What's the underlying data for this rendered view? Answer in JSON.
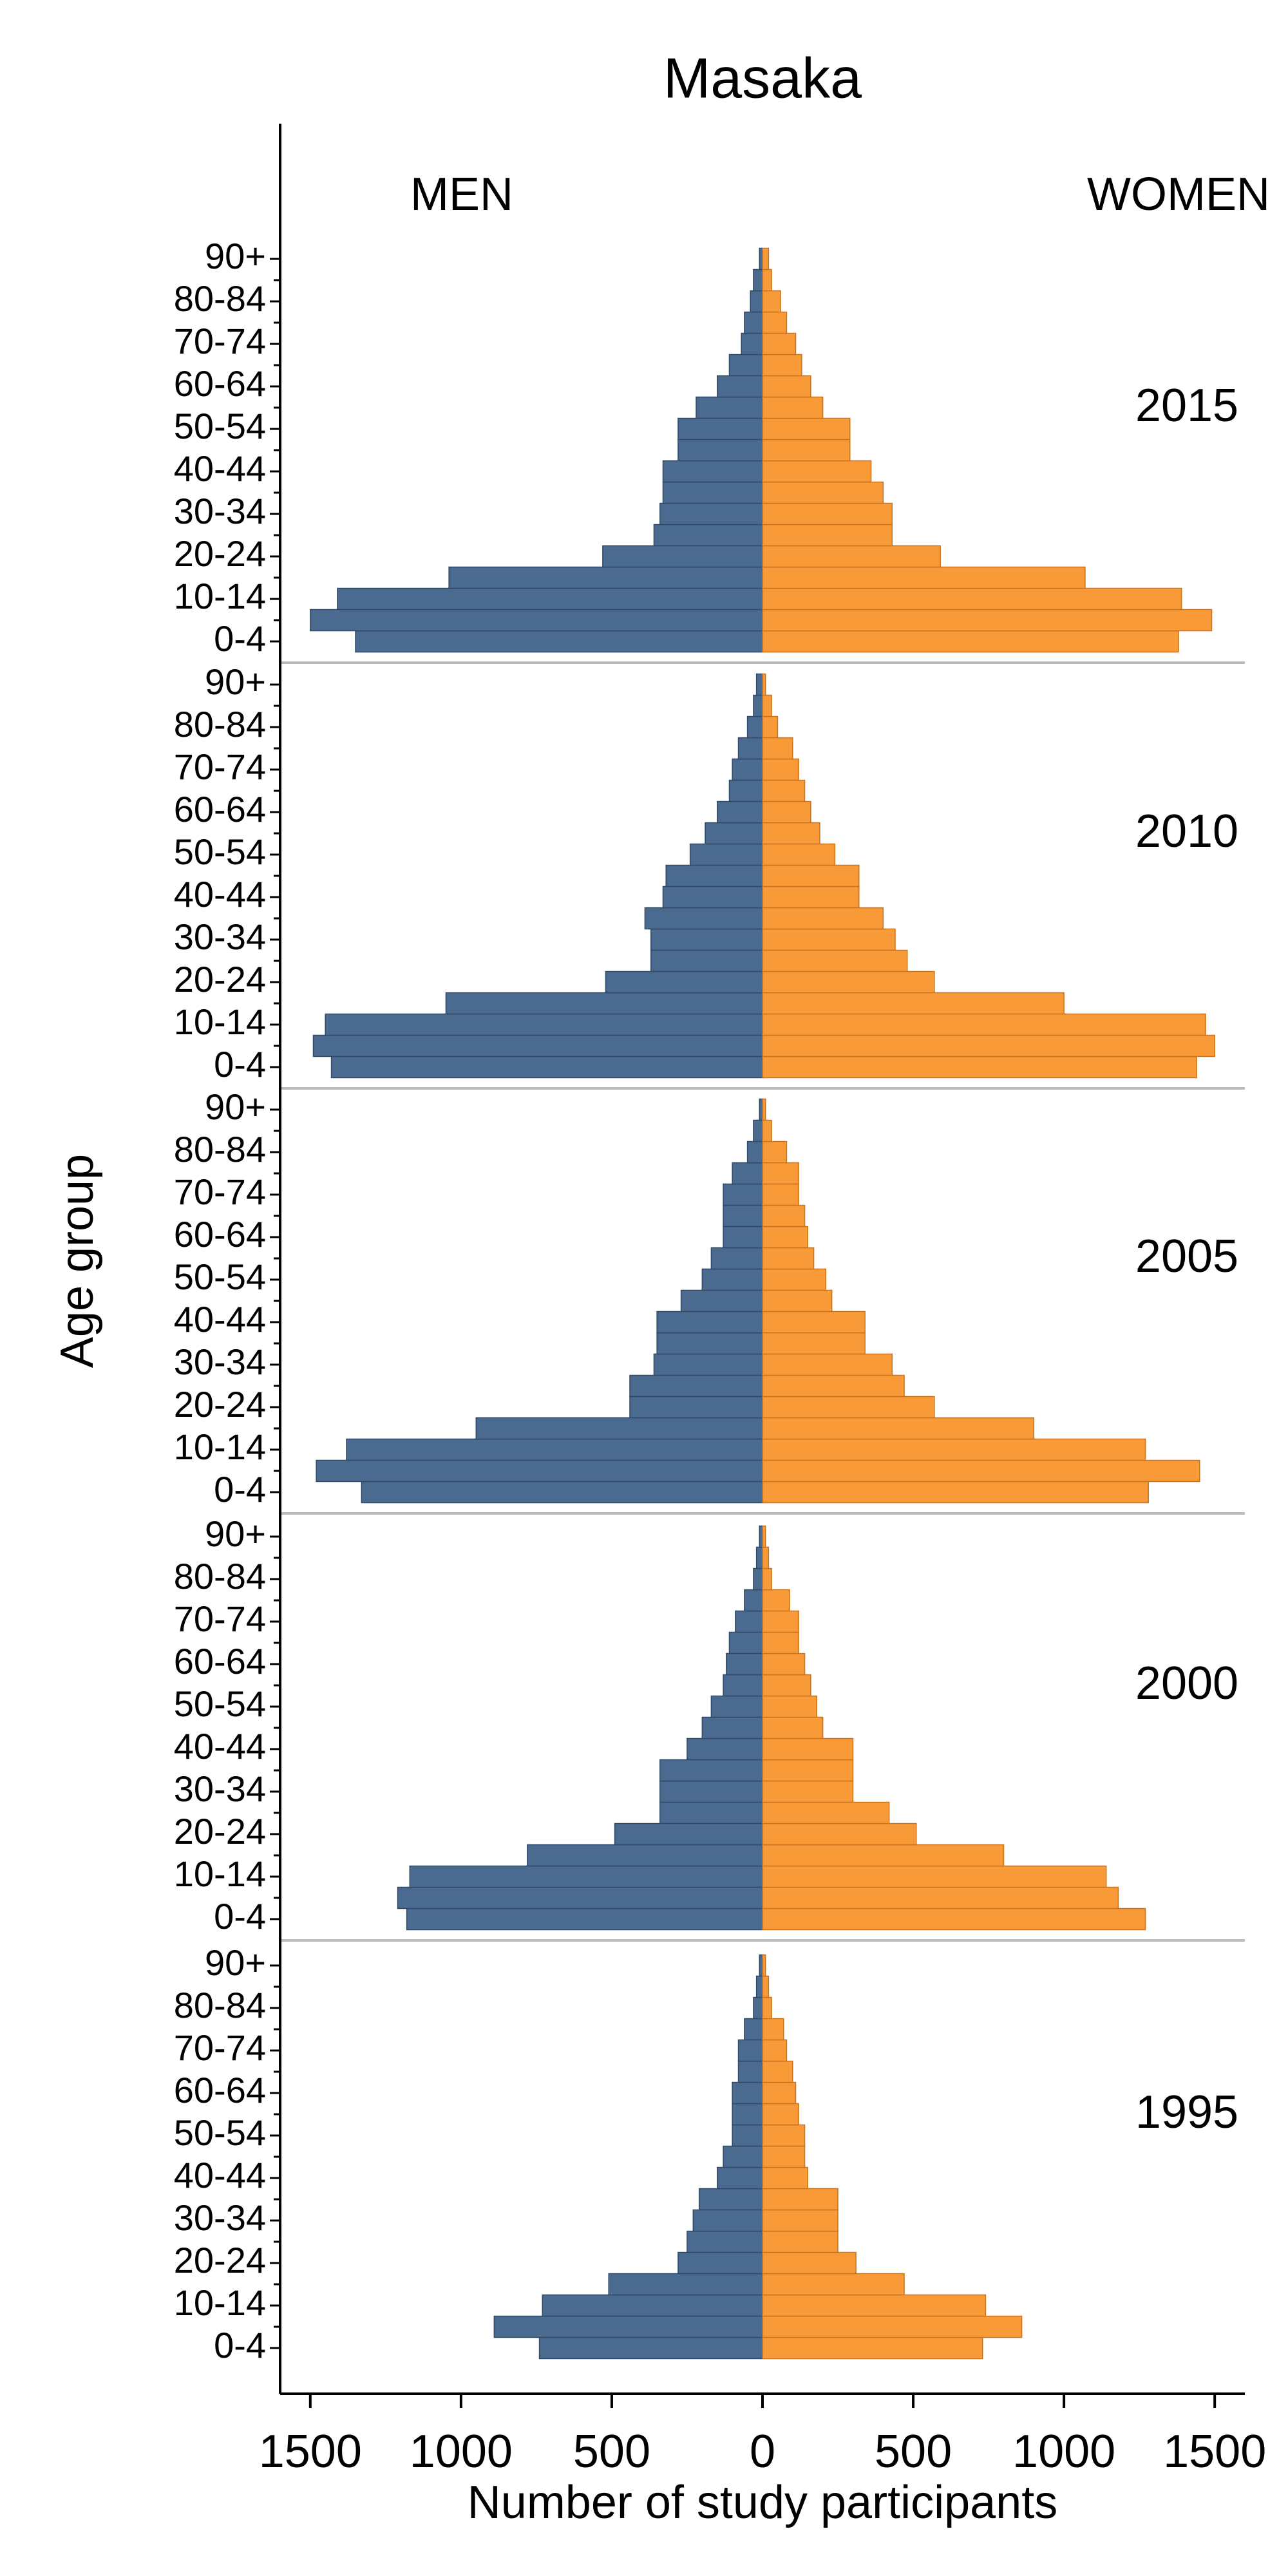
{
  "chart_data": {
    "type": "pyramid",
    "title": "Masaka",
    "y_label": "Age group",
    "x_label": "Number of study participants",
    "categories": [
      "0-4",
      null,
      "10-14",
      null,
      "20-24",
      null,
      "30-34",
      null,
      "40-44",
      null,
      "50-54",
      null,
      "60-64",
      null,
      "70-74",
      null,
      "80-84",
      null,
      "90+"
    ],
    "series": [
      {
        "name": "MEN",
        "color": "#4a6b8f"
      },
      {
        "name": "WOMEN",
        "color": "#f99a38"
      }
    ],
    "xlim": [
      -1600,
      1600
    ],
    "xticks": [
      {
        "value": -1500,
        "label": "1500"
      },
      {
        "value": -1000,
        "label": "1000"
      },
      {
        "value": -500,
        "label": "500"
      },
      0,
      500,
      1000,
      1500
    ],
    "panels": [
      {
        "label": "2015",
        "series": [
          {
            "values": [
              -1350,
              -1500,
              -1410,
              -1040,
              -530,
              -360,
              -340,
              -330,
              -330,
              -280,
              -280,
              -220,
              -150,
              -110,
              -70,
              -60,
              -40,
              -30,
              -10
            ]
          },
          {
            "values": [
              1380,
              1490,
              1390,
              1070,
              590,
              430,
              430,
              400,
              360,
              290,
              290,
              200,
              160,
              130,
              110,
              80,
              60,
              30,
              20
            ]
          }
        ]
      },
      {
        "label": "2010",
        "series": [
          {
            "values": [
              -1430,
              -1490,
              -1450,
              -1050,
              -520,
              -370,
              -370,
              -390,
              -330,
              -320,
              -240,
              -190,
              -150,
              -110,
              -100,
              -80,
              -50,
              -30,
              -20
            ]
          },
          {
            "values": [
              1440,
              1500,
              1470,
              1000,
              570,
              480,
              440,
              400,
              320,
              320,
              240,
              190,
              160,
              140,
              120,
              100,
              50,
              30,
              10
            ]
          }
        ]
      },
      {
        "label": "2005",
        "series": [
          {
            "values": [
              -1330,
              -1480,
              -1380,
              -950,
              -440,
              -440,
              -360,
              -350,
              -350,
              -270,
              -200,
              -170,
              -130,
              -130,
              -130,
              -100,
              -50,
              -30,
              -10
            ]
          },
          {
            "values": [
              1280,
              1450,
              1270,
              900,
              570,
              470,
              430,
              340,
              340,
              230,
              210,
              170,
              150,
              140,
              120,
              120,
              80,
              30,
              10
            ]
          }
        ]
      },
      {
        "label": "2000",
        "series": [
          {
            "values": [
              -1180,
              -1210,
              -1170,
              -780,
              -490,
              -340,
              -340,
              -340,
              -250,
              -200,
              -170,
              -130,
              -120,
              -110,
              -90,
              -60,
              -30,
              -20,
              -10
            ]
          },
          {
            "values": [
              1270,
              1180,
              1140,
              800,
              510,
              420,
              300,
              300,
              300,
              200,
              180,
              160,
              140,
              120,
              120,
              90,
              30,
              20,
              10
            ]
          }
        ]
      },
      {
        "label": "1995",
        "series": [
          {
            "values": [
              -740,
              -890,
              -730,
              -510,
              -280,
              -250,
              -230,
              -210,
              -150,
              -130,
              -100,
              -100,
              -100,
              -80,
              -80,
              -60,
              -30,
              -20,
              -10
            ]
          },
          {
            "values": [
              730,
              860,
              740,
              470,
              310,
              250,
              250,
              250,
              150,
              140,
              140,
              120,
              110,
              100,
              80,
              70,
              30,
              20,
              10
            ]
          }
        ]
      }
    ]
  }
}
